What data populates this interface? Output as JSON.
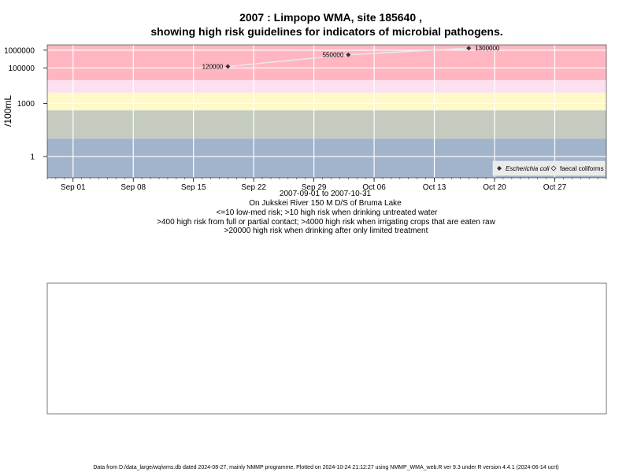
{
  "chart_data": {
    "type": "line",
    "title_line1": "2007 : Limpopo WMA, site 185640 ,",
    "title_line2": "showing high risk guidelines for indicators of microbial pathogens.",
    "ylabel": "/100mL",
    "yscale": "log10",
    "ylim_log10": [
      -1.2,
      6.3
    ],
    "xlim": [
      "2007-08-29",
      "2007-11-02"
    ],
    "y_ticks": [
      {
        "value": 1000000,
        "label": "1000000"
      },
      {
        "value": 100000,
        "label": "100000"
      },
      {
        "value": 1000,
        "label": "1000"
      },
      {
        "value": 1,
        "label": "1"
      }
    ],
    "x_ticks": [
      {
        "date": "2007-09-01",
        "label": "Sep 01"
      },
      {
        "date": "2007-09-08",
        "label": "Sep 08"
      },
      {
        "date": "2007-09-15",
        "label": "Sep 15"
      },
      {
        "date": "2007-09-22",
        "label": "Sep 22"
      },
      {
        "date": "2007-09-29",
        "label": "Sep 29"
      },
      {
        "date": "2007-10-06",
        "label": "Oct 06"
      },
      {
        "date": "2007-10-13",
        "label": "Oct 13"
      },
      {
        "date": "2007-10-20",
        "label": "Oct 20"
      },
      {
        "date": "2007-10-27",
        "label": "Oct 27"
      }
    ],
    "bands": [
      {
        "from": 20000,
        "to": 2000000,
        "color": "#FFB6C1"
      },
      {
        "from": 4000,
        "to": 20000,
        "color": "#FDE0F0"
      },
      {
        "from": 400,
        "to": 4000,
        "color": "#FFF8C8"
      },
      {
        "from": 10,
        "to": 400,
        "color": "#C5CCBF"
      },
      {
        "from": 0.01,
        "to": 10,
        "color": "#A2B3CC"
      }
    ],
    "series": [
      {
        "name": "Escherichia coli",
        "marker": "diamond-filled",
        "line_color": "#E8E8E8",
        "points": [
          {
            "date": "2007-09-19",
            "value": 120000,
            "label": "120000"
          },
          {
            "date": "2007-10-03",
            "value": 550000,
            "label": "550000"
          },
          {
            "date": "2007-10-17",
            "value": 1300000,
            "label": "1300000"
          }
        ]
      },
      {
        "name": "faecal coliforms",
        "marker": "diamond-open",
        "points": []
      }
    ],
    "legend_position": "bottom-right",
    "grid": true,
    "date_range_text": "2007-09-01 to 2007-10-31",
    "subtitle_lines": [
      "On Jukskei River 150 M D/S of Bruma Lake",
      "<=10 low-med risk; >10 high risk when drinking untreated water",
      ">400 high risk from full or partial contact; >4000 high risk when irrigating crops that are eaten raw",
      ">20000 high risk when drinking after only limited treatment"
    ]
  },
  "footer": "Data from D:/data_large/wq/wms.db dated 2024-08-27, mainly NMMP programme. Plotted on 2024-10-24 21:12:27 using NMMP_WMA_web.R ver 9.3 under R version 4.4.1 (2024-06-14 ucrt)",
  "colors": {
    "axis": "#000000",
    "grid": "#FFFFFF",
    "point": "#333333",
    "legend_bg": "#EBEBEB"
  }
}
